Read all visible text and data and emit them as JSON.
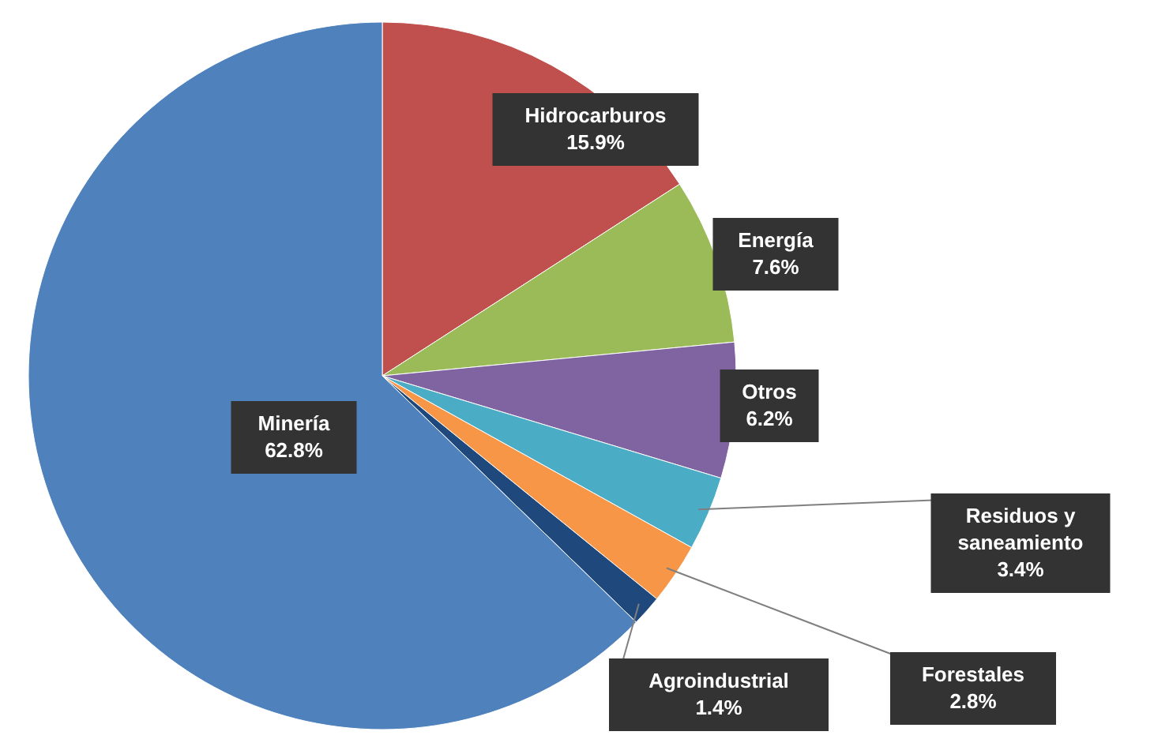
{
  "chart_data": {
    "type": "pie",
    "categories": [
      "Hidrocarburos",
      "Energía",
      "Otros",
      "Residuos y saneamiento",
      "Forestales",
      "Agroindustrial",
      "Minería"
    ],
    "values": [
      15.9,
      7.6,
      6.2,
      3.4,
      2.8,
      1.4,
      62.8
    ],
    "colors": [
      "#c0504d",
      "#9bbb59",
      "#8064a2",
      "#4bacc6",
      "#f79646",
      "#1f497d",
      "#4f81bd"
    ],
    "value_labels": [
      "15.9%",
      "7.6%",
      "6.2%",
      "3.4%",
      "2.8%",
      "1.4%",
      "62.8%"
    ]
  }
}
